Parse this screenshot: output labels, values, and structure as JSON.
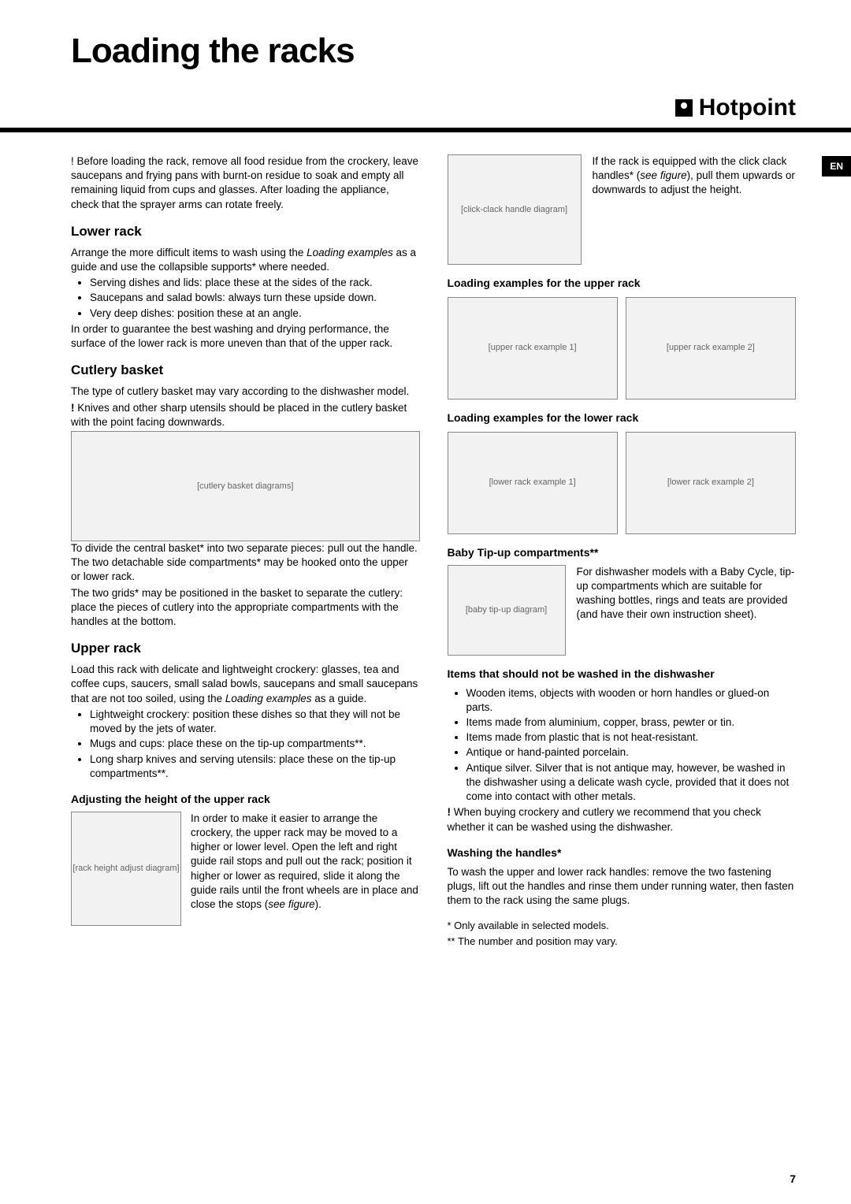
{
  "page_title": "Loading the racks",
  "brand": "Hotpoint",
  "lang_badge": "EN",
  "page_number": "7",
  "intro": "! Before loading the rack, remove all food residue from the crockery, leave saucepans and frying pans with burnt-on residue to soak and empty all remaining liquid from cups and glasses. After loading the appliance, check that the sprayer arms can rotate freely.",
  "lower_rack": {
    "heading": "Lower rack",
    "intro": "Arrange the more difficult items to wash using the ",
    "intro_italic": "Loading examples",
    "intro_end": " as a guide and use the collapsible supports* where needed.",
    "items": [
      "Serving dishes and lids: place these at the sides of the rack.",
      "Saucepans and salad bowls: always turn these upside down.",
      "Very deep dishes: position these at an angle."
    ],
    "outro": "In order to guarantee the best washing and drying performance, the surface of the lower rack is more uneven than that of the upper rack."
  },
  "cutlery": {
    "heading": "Cutlery basket",
    "p1": "The type of cutlery basket may vary according to the dishwasher model.",
    "warn_prefix": "!",
    "warn": " Knives and other sharp utensils should be placed in the cutlery basket with the point facing downwards.",
    "p2": "To divide the central basket* into two separate pieces: pull out the handle. The two detachable side compartments* may be hooked onto the upper or lower rack.",
    "p3": "The two grids* may be positioned in the basket to separate the cutlery: place the pieces of cutlery into the appropriate compartments with the handles at the bottom."
  },
  "upper_rack": {
    "heading": "Upper rack",
    "intro": "Load this rack with delicate and lightweight crockery: glasses, tea and coffee cups, saucers, small salad bowls, saucepans and small saucepans that are not too soiled, using the ",
    "intro_italic": "Loading examples",
    "intro_end": " as a guide.",
    "items": [
      "Lightweight crockery: position these dishes so that they will not be moved by the jets of water.",
      "Mugs and cups: place these on the tip-up compartments**.",
      "Long sharp knives and serving utensils: place these on the tip-up compartments**."
    ]
  },
  "adjust": {
    "heading": "Adjusting the height of the upper rack",
    "text": "In order to make it easier to arrange the crockery, the upper rack may be moved to a higher or lower level. Open the left and right guide rail stops and pull out the rack; position it higher or lower as required, slide it along the guide rails until the front wheels are in place and close the stops (",
    "text_italic": "see figure",
    "text_end": ")."
  },
  "click_clack": {
    "text_start": "If the rack is equipped with the click clack handles* (",
    "text_italic": "see figure",
    "text_end": "), pull them upwards or downwards to adjust the height."
  },
  "ex_upper_heading": "Loading examples for the upper rack",
  "ex_lower_heading": "Loading examples for the lower rack",
  "baby": {
    "heading": "Baby Tip-up compartments**",
    "text": "For dishwasher models with a Baby Cycle, tip-up compartments which are suitable for washing bottles, rings and teats are provided (and have their own instruction sheet)."
  },
  "notwash": {
    "heading": "Items that should not be washed in the dishwasher",
    "items": [
      "Wooden items, objects with wooden or horn handles or glued-on parts.",
      "Items made from aluminium, copper, brass, pewter or tin.",
      "Items made from plastic that is not heat-resistant.",
      "Antique or hand-painted porcelain.",
      "Antique silver. Silver that is not antique may, however, be washed in the dishwasher using a delicate wash cycle, provided that it does not come into contact with other metals."
    ],
    "warn_prefix": "!",
    "warn": " When buying crockery and cutlery we recommend that you check whether it can be washed using the dishwasher."
  },
  "handles": {
    "heading": "Washing the handles*",
    "text": "To wash the upper and lower rack handles: remove the two fastening plugs, lift out the handles and rinse them under running water, then fasten them to the rack using the same plugs."
  },
  "footnote1": "* Only available in selected models.",
  "footnote2": "** The number and position may vary.",
  "img_labels": {
    "cutlery": "[cutlery basket diagrams]",
    "adjust": "[rack height adjust diagram]",
    "clickclack": "[click-clack handle diagram]",
    "upper1": "[upper rack example 1]",
    "upper2": "[upper rack example 2]",
    "lower1": "[lower rack example 1]",
    "lower2": "[lower rack example 2]",
    "baby": "[baby tip-up diagram]"
  }
}
